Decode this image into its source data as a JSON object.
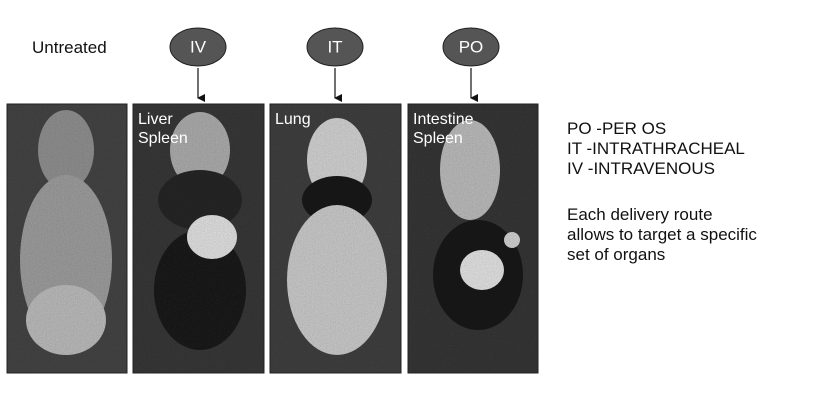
{
  "untreated_label": "Untreated",
  "routes": [
    "IV",
    "IT",
    "PO"
  ],
  "panels": [
    {
      "labels": [
        "Liver",
        "Spleen"
      ]
    },
    {
      "labels": [
        "Lung"
      ]
    },
    {
      "labels": [
        "Intestine",
        "Spleen"
      ]
    }
  ],
  "abbreviations": [
    "PO -PER OS",
    "IT -INTRATHRACHEAL",
    "IV -INTRAVENOUS"
  ],
  "note": [
    "Each delivery route",
    "allows to target a specific",
    "set of organs"
  ]
}
